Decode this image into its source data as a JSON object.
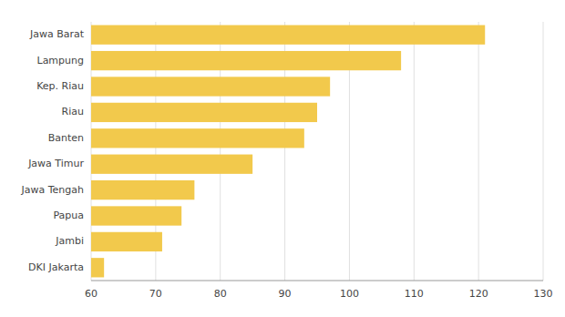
{
  "chart_data": {
    "type": "bar",
    "orientation": "horizontal",
    "categories": [
      "DKI Jakarta",
      "Jambi",
      "Papua",
      "Jawa Tengah",
      "Jawa Timur",
      "Banten",
      "Riau",
      "Kep. Riau",
      "Lampung",
      "Jawa Barat"
    ],
    "values": [
      62,
      71,
      74,
      76,
      85,
      93,
      95,
      97,
      108,
      121
    ],
    "color": "#F2C94C",
    "xlim": [
      60,
      130
    ],
    "xticks": [
      60,
      70,
      80,
      90,
      100,
      110,
      120,
      130
    ],
    "grid": true
  }
}
